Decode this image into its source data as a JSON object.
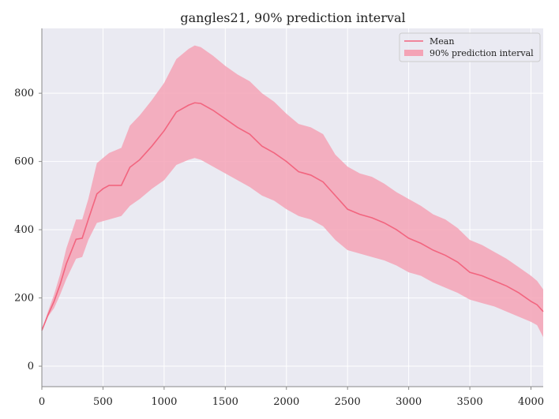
{
  "chart_data": {
    "type": "area",
    "title": "gangles21, 90% prediction interval",
    "xlabel": "",
    "ylabel": "",
    "xlim": [
      0,
      4100
    ],
    "ylim": [
      -60,
      990
    ],
    "xticks": [
      0,
      500,
      1000,
      1500,
      2000,
      2500,
      3000,
      3500,
      4000
    ],
    "yticks": [
      0,
      200,
      400,
      600,
      800
    ],
    "grid": true,
    "legend_position": "top-right",
    "colors": {
      "background": "#eaeaf2",
      "grid": "#ffffff",
      "mean": "#f2657f",
      "band": "#f4a3b6",
      "axis": "#888888"
    },
    "series": [
      {
        "name": "Mean",
        "kind": "line",
        "x": [
          0,
          50,
          100,
          150,
          200,
          280,
          330,
          380,
          450,
          500,
          550,
          650,
          720,
          800,
          900,
          1000,
          1100,
          1200,
          1250,
          1300,
          1400,
          1500,
          1600,
          1700,
          1800,
          1900,
          2000,
          2100,
          2200,
          2300,
          2400,
          2500,
          2600,
          2700,
          2800,
          2900,
          3000,
          3100,
          3200,
          3300,
          3400,
          3500,
          3600,
          3700,
          3800,
          3900,
          4000,
          4050,
          4100
        ],
        "y": [
          105,
          150,
          190,
          240,
          300,
          372,
          375,
          430,
          505,
          520,
          530,
          530,
          583,
          605,
          645,
          690,
          745,
          765,
          772,
          770,
          750,
          725,
          700,
          680,
          645,
          625,
          600,
          570,
          560,
          540,
          500,
          460,
          445,
          435,
          420,
          400,
          375,
          360,
          340,
          325,
          305,
          275,
          265,
          250,
          235,
          215,
          190,
          180,
          160
        ]
      },
      {
        "name": "90% prediction interval",
        "kind": "band",
        "x": [
          0,
          50,
          100,
          150,
          200,
          280,
          330,
          380,
          450,
          500,
          550,
          650,
          720,
          800,
          900,
          1000,
          1100,
          1200,
          1250,
          1300,
          1400,
          1500,
          1600,
          1700,
          1800,
          1900,
          2000,
          2100,
          2200,
          2300,
          2400,
          2500,
          2600,
          2700,
          2800,
          2900,
          3000,
          3100,
          3200,
          3300,
          3400,
          3500,
          3600,
          3700,
          3800,
          3900,
          4000,
          4050,
          4100
        ],
        "lower": [
          105,
          145,
          170,
          210,
          255,
          315,
          320,
          370,
          420,
          425,
          430,
          440,
          470,
          490,
          520,
          545,
          590,
          605,
          610,
          605,
          585,
          565,
          545,
          525,
          500,
          485,
          460,
          440,
          430,
          410,
          370,
          340,
          330,
          320,
          310,
          295,
          275,
          265,
          245,
          230,
          215,
          195,
          185,
          175,
          160,
          145,
          130,
          120,
          85
        ],
        "upper": [
          105,
          160,
          210,
          270,
          345,
          430,
          430,
          490,
          595,
          610,
          625,
          640,
          705,
          735,
          780,
          830,
          900,
          930,
          940,
          935,
          910,
          880,
          855,
          835,
          800,
          775,
          740,
          710,
          700,
          680,
          620,
          585,
          565,
          555,
          535,
          510,
          490,
          470,
          445,
          430,
          405,
          370,
          355,
          335,
          315,
          290,
          265,
          250,
          225
        ]
      }
    ]
  }
}
